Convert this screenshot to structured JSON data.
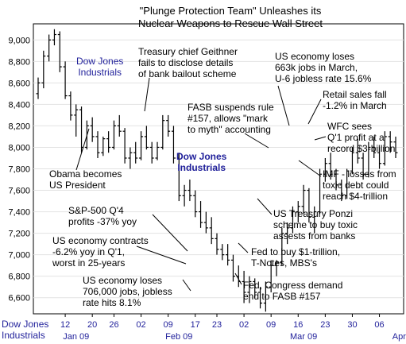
{
  "chart_data": {
    "type": "ohlc",
    "title_line1": "\"Plunge Protection Team\" Unleashes its",
    "title_line2": "Nuclear Weapons to Rescue Wall Street",
    "series_label_top": "Dow Jones\nIndustrials",
    "series_label_mid": "Dow Jones\nIndustrials",
    "footer_label": "Dow Jones\nIndustrials",
    "ylim": [
      6450,
      9150
    ],
    "yticks": [
      6600,
      6800,
      7000,
      7200,
      7400,
      7600,
      7800,
      8000,
      8200,
      8400,
      8600,
      8800,
      9000
    ],
    "ytick_labels": [
      "6,600",
      "6,800",
      "7,000",
      "7,200",
      "7,400",
      "7,600",
      "7,800",
      "8,000",
      "8,200",
      "8,400",
      "8,600",
      "8,800",
      "9,000"
    ],
    "xticks": [
      {
        "label": "12",
        "i": 5
      },
      {
        "label": "20",
        "i": 10
      },
      {
        "label": "26",
        "i": 14
      },
      {
        "label": "02",
        "i": 19
      },
      {
        "label": "09",
        "i": 24
      },
      {
        "label": "17",
        "i": 29
      },
      {
        "label": "23",
        "i": 33
      },
      {
        "label": "02",
        "i": 38
      },
      {
        "label": "09",
        "i": 43
      },
      {
        "label": "16",
        "i": 48
      },
      {
        "label": "23",
        "i": 53
      },
      {
        "label": "30",
        "i": 58
      },
      {
        "label": "06",
        "i": 63
      }
    ],
    "months": [
      {
        "label": "Jan 09",
        "i": 7
      },
      {
        "label": "Feb 09",
        "i": 26
      },
      {
        "label": "Mar 09",
        "i": 49
      },
      {
        "label": "April",
        "i": 67
      }
    ],
    "bars": [
      [
        8500,
        8650,
        8450,
        8600
      ],
      [
        8600,
        8900,
        8550,
        8850
      ],
      [
        8850,
        9050,
        8800,
        9000
      ],
      [
        9000,
        9100,
        8950,
        9050
      ],
      [
        9050,
        9080,
        8700,
        8750
      ],
      [
        8750,
        8800,
        8450,
        8480
      ],
      [
        8480,
        8520,
        8250,
        8300
      ],
      [
        8300,
        8400,
        8100,
        8350
      ],
      [
        8350,
        8380,
        7950,
        8000
      ],
      [
        8000,
        8250,
        7980,
        8200
      ],
      [
        8200,
        8280,
        8050,
        8100
      ],
      [
        8100,
        8150,
        7900,
        7950
      ],
      [
        7950,
        8100,
        7920,
        8080
      ],
      [
        8080,
        8150,
        7950,
        8000
      ],
      [
        8000,
        8250,
        7980,
        8200
      ],
      [
        8200,
        8300,
        8100,
        8150
      ],
      [
        8150,
        8180,
        7850,
        7900
      ],
      [
        7900,
        8000,
        7800,
        7950
      ],
      [
        7950,
        8050,
        7850,
        7900
      ],
      [
        7900,
        8150,
        7880,
        8100
      ],
      [
        8100,
        8200,
        7980,
        8000
      ],
      [
        8000,
        8050,
        7850,
        7900
      ],
      [
        7900,
        8050,
        7880,
        8000
      ],
      [
        8000,
        8300,
        7980,
        8250
      ],
      [
        8250,
        8300,
        8100,
        8150
      ],
      [
        8150,
        8200,
        7850,
        7900
      ],
      [
        7900,
        7950,
        7500,
        7550
      ],
      [
        7550,
        7650,
        7450,
        7600
      ],
      [
        7600,
        7700,
        7500,
        7550
      ],
      [
        7550,
        7600,
        7350,
        7400
      ],
      [
        7400,
        7500,
        7250,
        7300
      ],
      [
        7300,
        7400,
        7200,
        7250
      ],
      [
        7250,
        7350,
        7100,
        7150
      ],
      [
        7150,
        7200,
        7000,
        7050
      ],
      [
        7050,
        7100,
        6950,
        7000
      ],
      [
        7000,
        7100,
        6900,
        6950
      ],
      [
        6950,
        7000,
        6750,
        6800
      ],
      [
        6800,
        6900,
        6700,
        6750
      ],
      [
        6750,
        6850,
        6550,
        6650
      ],
      [
        6650,
        6800,
        6550,
        6750
      ],
      [
        6750,
        6780,
        6600,
        6650
      ],
      [
        6650,
        6700,
        6500,
        6550
      ],
      [
        6550,
        6750,
        6470,
        6700
      ],
      [
        6700,
        6950,
        6650,
        6900
      ],
      [
        6900,
        6950,
        6800,
        6930
      ],
      [
        6930,
        7250,
        6900,
        7200
      ],
      [
        7200,
        7300,
        7100,
        7250
      ],
      [
        7250,
        7450,
        7200,
        7400
      ],
      [
        7400,
        7500,
        7300,
        7450
      ],
      [
        7450,
        7650,
        7380,
        7600
      ],
      [
        7600,
        7620,
        7300,
        7350
      ],
      [
        7350,
        7450,
        7200,
        7400
      ],
      [
        7400,
        7800,
        7380,
        7750
      ],
      [
        7750,
        7900,
        7680,
        7850
      ],
      [
        7850,
        7950,
        7700,
        7750
      ],
      [
        7750,
        7800,
        7600,
        7650
      ],
      [
        7650,
        7700,
        7500,
        7550
      ],
      [
        7550,
        7800,
        7520,
        7780
      ],
      [
        7780,
        8000,
        7750,
        7950
      ],
      [
        7950,
        8080,
        7850,
        7900
      ],
      [
        7900,
        7950,
        7700,
        7750
      ],
      [
        7750,
        8050,
        7720,
        8000
      ],
      [
        8000,
        8100,
        7900,
        7950
      ],
      [
        7950,
        8000,
        7800,
        7850
      ],
      [
        7850,
        8150,
        7830,
        8100
      ],
      [
        8100,
        8150,
        7950,
        8050
      ],
      [
        8050,
        8100,
        7900,
        7950
      ]
    ]
  },
  "annotations": {
    "geithner": "Treasury chief Geithner\nfails to disclose details\nof bank bailout scheme",
    "jobs663": "US economy loses\n663k jobs in March,\nU-6 jobless rate 15.6%",
    "fasb_suspend": "FASB suspends rule\n#157, allows \"mark\nto myth\" accounting",
    "retail": "Retail sales fall\n-1.2% in March",
    "wfc": "WFC sees\nQ'1 profit at a\nrecord $3-billion",
    "imf": "IMF - losses from\ntoxic debt could\nreach $4-trillion",
    "obama": "Obama becomes\nUS President",
    "ponzi": "US Treasury Ponzi\nscheme to buy toxic\nassests from banks",
    "sp500": "S&P-500 Q'4\nprofits -37% yoy",
    "contracts": "US economy contracts\n-6.2% yoy in Q'1,\nworst in 25-years",
    "fed1t": "Fed to buy $1-trillion,\nT-Notes, MBS's",
    "jobs706": "US economy loses\n706,000 jobs, jobless\nrate hits 8.1%",
    "fasb_end": "Fed, Congress demand\nend to FASB #157"
  }
}
